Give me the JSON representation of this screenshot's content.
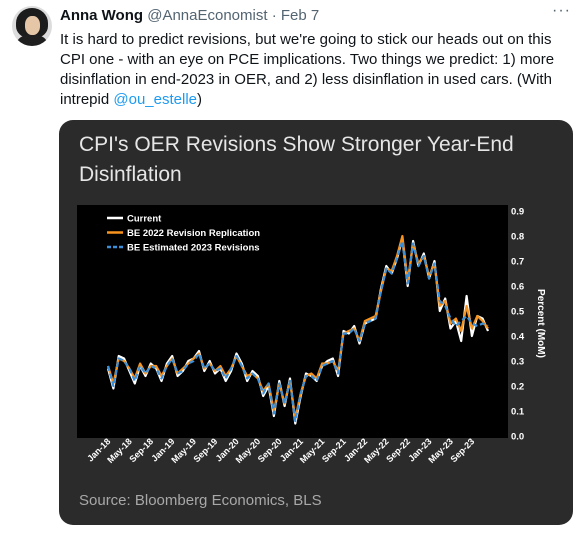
{
  "tweet": {
    "author_name": "Anna Wong",
    "handle": "@AnnaEconomist",
    "separator": "·",
    "date": "Feb 7",
    "more_label": "···",
    "text_before_mention": "It is hard to predict revisions, but we're going to stick our heads out on this CPI one - with an eye on PCE implications. Two things we predict: 1) more disinflation in end-2023 in OER, and 2) less disinflation in used cars. (With intrepid ",
    "mention": "@ou_estelle",
    "text_after_mention": ")"
  },
  "card": {
    "source": "Source: Bloomberg Economics, BLS"
  },
  "chart_data": {
    "type": "line",
    "title": "CPI's OER Revisions Show Stronger Year-End Disinflation",
    "ylabel": "Percent (MoM)",
    "ylim": [
      0,
      0.9
    ],
    "yticks": [
      "0.0",
      "0.1",
      "0.2",
      "0.3",
      "0.4",
      "0.5",
      "0.6",
      "0.7",
      "0.8",
      "0.9"
    ],
    "x": [
      "Jan-18",
      "Feb-18",
      "Mar-18",
      "Apr-18",
      "May-18",
      "Jun-18",
      "Jul-18",
      "Aug-18",
      "Sep-18",
      "Oct-18",
      "Nov-18",
      "Dec-18",
      "Jan-19",
      "Feb-19",
      "Mar-19",
      "Apr-19",
      "May-19",
      "Jun-19",
      "Jul-19",
      "Aug-19",
      "Sep-19",
      "Oct-19",
      "Nov-19",
      "Dec-19",
      "Jan-20",
      "Feb-20",
      "Mar-20",
      "Apr-20",
      "May-20",
      "Jun-20",
      "Jul-20",
      "Aug-20",
      "Sep-20",
      "Oct-20",
      "Nov-20",
      "Dec-20",
      "Jan-21",
      "Feb-21",
      "Mar-21",
      "Apr-21",
      "May-21",
      "Jun-21",
      "Jul-21",
      "Aug-21",
      "Sep-21",
      "Oct-21",
      "Nov-21",
      "Dec-21",
      "Jan-22",
      "Feb-22",
      "Mar-22",
      "Apr-22",
      "May-22",
      "Jun-22",
      "Jul-22",
      "Aug-22",
      "Sep-22",
      "Oct-22",
      "Nov-22",
      "Dec-22",
      "Jan-23",
      "Feb-23",
      "Mar-23",
      "Apr-23",
      "May-23",
      "Jun-23",
      "Jul-23",
      "Aug-23",
      "Sep-23",
      "Oct-23",
      "Nov-23",
      "Dec-23"
    ],
    "xticks": [
      "Jan-18",
      "May-18",
      "Sep-18",
      "Jan-19",
      "May-19",
      "Sep-19",
      "Jan-20",
      "May-20",
      "Sep-20",
      "Jan-21",
      "May-21",
      "Sep-21",
      "Jan-22",
      "May-22",
      "Sep-22",
      "Jan-23",
      "May-23",
      "Sep-23"
    ],
    "legend_position": "top-left",
    "background": "#000000",
    "series": [
      {
        "name": "Current",
        "color": "#ffffff",
        "dash": "solid",
        "values": [
          0.27,
          0.19,
          0.32,
          0.31,
          0.26,
          0.21,
          0.28,
          0.24,
          0.29,
          0.27,
          0.22,
          0.29,
          0.32,
          0.24,
          0.26,
          0.3,
          0.31,
          0.34,
          0.26,
          0.3,
          0.25,
          0.27,
          0.22,
          0.26,
          0.33,
          0.29,
          0.22,
          0.26,
          0.24,
          0.16,
          0.2,
          0.08,
          0.22,
          0.12,
          0.23,
          0.05,
          0.16,
          0.25,
          0.24,
          0.22,
          0.28,
          0.3,
          0.31,
          0.24,
          0.42,
          0.41,
          0.44,
          0.37,
          0.45,
          0.46,
          0.47,
          0.59,
          0.68,
          0.65,
          0.71,
          0.79,
          0.6,
          0.78,
          0.68,
          0.73,
          0.63,
          0.7,
          0.5,
          0.55,
          0.43,
          0.46,
          0.38,
          0.56,
          0.4,
          0.48,
          0.47,
          0.42
        ]
      },
      {
        "name": "BE 2022 Revision Replication",
        "color": "#f7931e",
        "dash": "solid",
        "values": [
          0.28,
          0.21,
          0.31,
          0.3,
          0.27,
          0.23,
          0.29,
          0.25,
          0.28,
          0.28,
          0.24,
          0.28,
          0.31,
          0.25,
          0.27,
          0.29,
          0.31,
          0.33,
          0.27,
          0.29,
          0.26,
          0.28,
          0.24,
          0.27,
          0.32,
          0.28,
          0.24,
          0.25,
          0.23,
          0.18,
          0.21,
          0.1,
          0.21,
          0.13,
          0.22,
          0.07,
          0.17,
          0.24,
          0.25,
          0.23,
          0.29,
          0.29,
          0.3,
          0.26,
          0.41,
          0.42,
          0.43,
          0.38,
          0.46,
          0.47,
          0.48,
          0.58,
          0.67,
          0.66,
          0.72,
          0.8,
          0.62,
          0.77,
          0.69,
          0.72,
          0.64,
          0.69,
          0.52,
          0.54,
          0.45,
          0.47,
          0.42,
          0.52,
          0.43,
          0.48,
          0.46,
          0.43
        ]
      },
      {
        "name": "BE Estimated 2023 Revisions",
        "color": "#3a8fd8",
        "dash": "dashed",
        "values": [
          0.28,
          0.2,
          0.31,
          0.3,
          0.27,
          0.22,
          0.28,
          0.25,
          0.28,
          0.27,
          0.23,
          0.28,
          0.31,
          0.25,
          0.26,
          0.29,
          0.3,
          0.33,
          0.27,
          0.29,
          0.26,
          0.27,
          0.23,
          0.27,
          0.32,
          0.28,
          0.23,
          0.25,
          0.23,
          0.17,
          0.21,
          0.09,
          0.21,
          0.13,
          0.22,
          0.06,
          0.17,
          0.24,
          0.24,
          0.22,
          0.28,
          0.29,
          0.3,
          0.25,
          0.41,
          0.41,
          0.43,
          0.38,
          0.45,
          0.46,
          0.47,
          0.58,
          0.67,
          0.65,
          0.71,
          0.78,
          0.61,
          0.77,
          0.68,
          0.72,
          0.63,
          0.69,
          0.54,
          0.52,
          0.47,
          0.44,
          0.46,
          0.48,
          0.45,
          0.44,
          0.45,
          0.44
        ]
      }
    ]
  }
}
